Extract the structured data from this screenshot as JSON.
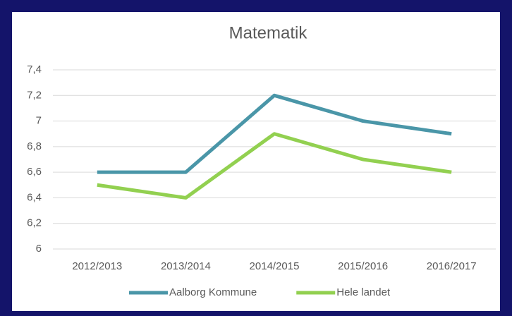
{
  "chart_data": {
    "type": "line",
    "title": "Matematik",
    "categories": [
      "2012/2013",
      "2013/2014",
      "2014/2015",
      "2015/2016",
      "2016/2017"
    ],
    "series": [
      {
        "name": "Aalborg Kommune",
        "color": "#4a96a8",
        "values": [
          6.6,
          6.6,
          7.2,
          7.0,
          6.9
        ]
      },
      {
        "name": "Hele landet",
        "color": "#92d050",
        "values": [
          6.5,
          6.4,
          6.9,
          6.7,
          6.6
        ]
      }
    ],
    "ylim": [
      6,
      7.4
    ],
    "yticks": [
      6,
      {
        "value": 6.2,
        "label": "6,2"
      },
      {
        "value": 6.4,
        "label": "6,4"
      },
      {
        "value": 6.6,
        "label": "6,6"
      },
      {
        "value": 6.8,
        "label": "6,8"
      },
      7,
      {
        "value": 7.2,
        "label": "7,2"
      },
      {
        "value": 7.4,
        "label": "7,4"
      }
    ],
    "grid": true,
    "legend": "bottom"
  }
}
